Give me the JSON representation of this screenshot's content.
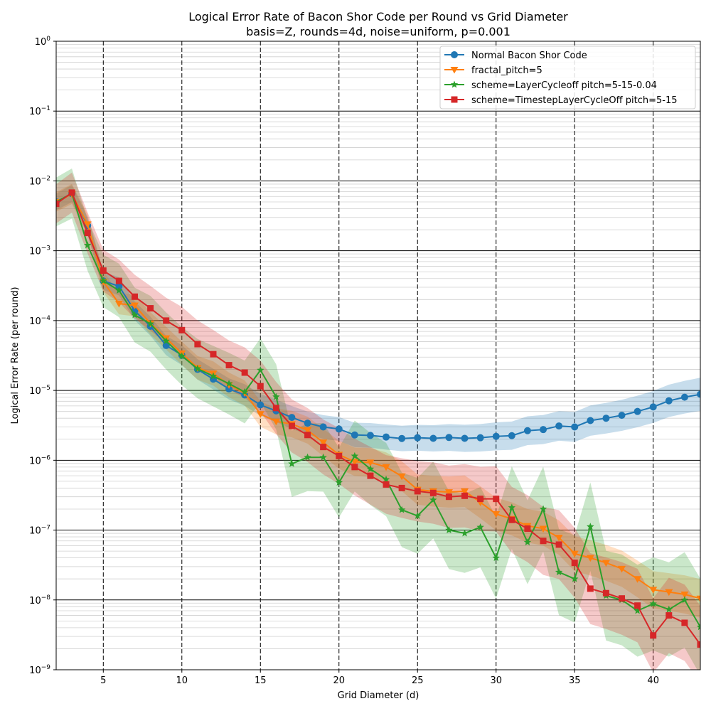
{
  "chart_data": {
    "type": "line",
    "title": "Logical Error Rate of Bacon Shor Code per Round vs Grid Diameter",
    "subtitle": "basis=Z, rounds=4d, noise=uniform, p=0.001",
    "xlabel": "Grid Diameter (d)",
    "ylabel": "Logical Error Rate (per round)",
    "xlim": [
      2,
      43
    ],
    "ylim": [
      1e-09,
      1
    ],
    "yscale": "log",
    "grid": true,
    "legend_position": "top-right",
    "x_ticks": [
      5,
      10,
      15,
      20,
      25,
      30,
      35,
      40
    ],
    "y_ticks": [
      {
        "value": 1e-09,
        "base": "10",
        "exp": "−9"
      },
      {
        "value": 1e-08,
        "base": "10",
        "exp": "−8"
      },
      {
        "value": 1e-07,
        "base": "10",
        "exp": "−7"
      },
      {
        "value": 1e-06,
        "base": "10",
        "exp": "−6"
      },
      {
        "value": 1e-05,
        "base": "10",
        "exp": "−5"
      },
      {
        "value": 0.0001,
        "base": "10",
        "exp": "−4"
      },
      {
        "value": 0.001,
        "base": "10",
        "exp": "−3"
      },
      {
        "value": 0.01,
        "base": "10",
        "exp": "−2"
      },
      {
        "value": 0.1,
        "base": "10",
        "exp": "−1"
      },
      {
        "value": 1,
        "base": "10",
        "exp": "0"
      }
    ],
    "series": [
      {
        "name": "Normal Bacon Shor Code",
        "color": "#1f77b4",
        "marker": "circle",
        "x": [
          2,
          3,
          4,
          5,
          6,
          7,
          8,
          9,
          10,
          11,
          12,
          13,
          14,
          15,
          16,
          17,
          18,
          19,
          20,
          21,
          22,
          23,
          24,
          25,
          26,
          27,
          28,
          29,
          30,
          31,
          32,
          33,
          34,
          35,
          36,
          37,
          38,
          39,
          40,
          41,
          42,
          43
        ],
        "y": [
          0.005,
          0.0066,
          0.0023,
          0.00037,
          0.00031,
          0.000138,
          8.3e-05,
          4.4e-05,
          3.2e-05,
          2e-05,
          1.45e-05,
          1.05e-05,
          8.6e-06,
          6.2e-06,
          5.1e-06,
          4.1e-06,
          3.4e-06,
          3e-06,
          2.8e-06,
          2.3e-06,
          2.27e-06,
          2.15e-06,
          2.05e-06,
          2.1e-06,
          2.06e-06,
          2.12e-06,
          2.06e-06,
          2.1e-06,
          2.2e-06,
          2.25e-06,
          2.65e-06,
          2.75e-06,
          3.1e-06,
          3e-06,
          3.7e-06,
          4e-06,
          4.4e-06,
          5e-06,
          5.8e-06,
          7.1e-06,
          8e-06,
          8.8e-06
        ],
        "band": 0.12
      },
      {
        "name": "fractal_pitch=5",
        "color": "#ff7f0e",
        "marker": "triangle-down",
        "x": [
          2,
          3,
          4,
          5,
          6,
          7,
          8,
          9,
          10,
          11,
          12,
          13,
          14,
          15,
          16,
          17,
          18,
          19,
          20,
          21,
          22,
          23,
          24,
          25,
          26,
          27,
          28,
          29,
          30,
          31,
          32,
          33,
          34,
          35,
          36,
          37,
          38,
          39,
          40,
          41,
          42,
          43
        ],
        "y": [
          0.005,
          0.0065,
          0.0024,
          0.00036,
          0.000175,
          0.000165,
          9.1e-05,
          5.6e-05,
          3.4e-05,
          2.1e-05,
          1.75e-05,
          1.2e-05,
          9.2e-06,
          4.6e-06,
          3.6e-06,
          3.3e-06,
          2.7e-06,
          1.8e-06,
          1.2e-06,
          9.5e-07,
          9.3e-07,
          8e-07,
          5.9e-07,
          3.8e-07,
          3.6e-07,
          3.5e-07,
          3.6e-07,
          2.5e-07,
          1.7e-07,
          1.45e-07,
          1.15e-07,
          1.05e-07,
          7.8e-08,
          4.6e-08,
          4e-08,
          3.4e-08,
          2.8e-08,
          2e-08,
          1.4e-08,
          1.3e-08,
          1.2e-08,
          1.05e-08
        ],
        "band": 0.14
      },
      {
        "name": "scheme=LayerCycleoff pitch=5-15-0.04",
        "color": "#2ca02c",
        "marker": "star",
        "x": [
          2,
          3,
          4,
          5,
          6,
          7,
          8,
          9,
          10,
          11,
          12,
          13,
          14,
          15,
          16,
          17,
          18,
          19,
          20,
          21,
          22,
          23,
          24,
          25,
          26,
          27,
          28,
          29,
          30,
          31,
          32,
          33,
          34,
          35,
          36,
          37,
          38,
          39,
          40,
          41,
          42,
          43
        ],
        "y": [
          0.005,
          0.0066,
          0.0012,
          0.00037,
          0.00027,
          0.00012,
          9e-05,
          5.1e-05,
          3.1e-05,
          2.05e-05,
          1.6e-05,
          1.25e-05,
          9.5e-06,
          1.95e-05,
          8.1e-06,
          8.9e-07,
          1.1e-06,
          1.1e-06,
          4.8e-07,
          1.15e-06,
          7.5e-07,
          5.3e-07,
          1.95e-07,
          1.6e-07,
          2.7e-07,
          1e-07,
          9e-08,
          1.1e-07,
          4e-08,
          2.1e-07,
          6.7e-08,
          2e-07,
          2.5e-08,
          2e-08,
          1.12e-07,
          1.15e-08,
          1e-08,
          7e-09,
          8.8e-09,
          7.3e-09,
          1e-08,
          4.1e-09
        ],
        "band": 0.35
      },
      {
        "name": "scheme=TimestepLayerCycleOff pitch=5-15",
        "color": "#d62728",
        "marker": "square",
        "x": [
          2,
          3,
          4,
          5,
          6,
          7,
          8,
          9,
          10,
          11,
          12,
          13,
          14,
          15,
          16,
          17,
          18,
          19,
          20,
          21,
          22,
          23,
          24,
          25,
          26,
          27,
          28,
          29,
          30,
          31,
          32,
          33,
          34,
          35,
          36,
          37,
          38,
          39,
          40,
          41,
          42,
          43
        ],
        "y": [
          0.0047,
          0.0068,
          0.0018,
          0.00052,
          0.00037,
          0.00022,
          0.00015,
          0.0001,
          7.3e-05,
          4.6e-05,
          3.3e-05,
          2.3e-05,
          1.8e-05,
          1.15e-05,
          5.6e-06,
          3.1e-06,
          2.3e-06,
          1.55e-06,
          1.15e-06,
          8e-07,
          6e-07,
          4.5e-07,
          4e-07,
          3.6e-07,
          3.4e-07,
          3e-07,
          3.1e-07,
          2.8e-07,
          2.8e-07,
          1.4e-07,
          1.05e-07,
          7e-08,
          6.2e-08,
          3.4e-08,
          1.45e-08,
          1.25e-08,
          1.05e-08,
          8.3e-09,
          3.1e-09,
          6e-09,
          4.7e-09,
          2.3e-09
        ],
        "band": 0.28
      }
    ]
  }
}
